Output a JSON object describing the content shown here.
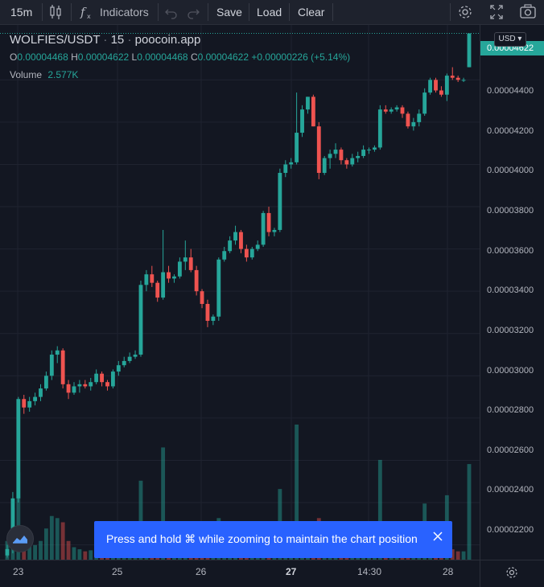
{
  "toolbar": {
    "interval": "15m",
    "indicators_label": "Indicators",
    "save_label": "Save",
    "load_label": "Load",
    "clear_label": "Clear"
  },
  "legend": {
    "symbol": "WOLFIES/USDT",
    "interval": "15",
    "source": "poocoin.app",
    "ohlc": [
      {
        "label": "O",
        "value": "0.00004468"
      },
      {
        "label": "H",
        "value": "0.00004622"
      },
      {
        "label": "L",
        "value": "0.00004468"
      },
      {
        "label": "C",
        "value": "0.00004622"
      }
    ],
    "change": "+0.00000226 (+5.14%)",
    "volume_label": "Volume",
    "volume_value": "2.577K"
  },
  "price_scale": {
    "currency": "USD",
    "current_price": "0.00004622",
    "labels": [
      "0.00004400",
      "0.00004200",
      "0.00004000",
      "0.00003800",
      "0.00003600",
      "0.00003400",
      "0.00003200",
      "0.00003000",
      "0.00002800",
      "0.00002600",
      "0.00002400",
      "0.00002200"
    ]
  },
  "time_scale": {
    "labels": [
      "23",
      "25",
      "26",
      "27",
      "14:30",
      "28"
    ]
  },
  "toast": {
    "message": "Press and hold ⌘ while zooming to maintain the chart position"
  },
  "colors": {
    "up": "#26a69a",
    "down": "#ef5350",
    "background": "#131722",
    "toast": "#2962ff"
  },
  "chart_data": {
    "type": "candlestick",
    "ylim": [
      2.13e-05,
      4.66e-05
    ],
    "x_labels": [
      "23",
      "25",
      "26",
      "27",
      "14:30",
      "28"
    ],
    "candles": [
      {
        "o": 2.15e-05,
        "h": 2.2e-05,
        "l": 2.14e-05,
        "c": 2.18e-05,
        "v": 90
      },
      {
        "o": 2.19e-05,
        "h": 2.45e-05,
        "l": 2.16e-05,
        "c": 2.42e-05,
        "v": 250
      },
      {
        "o": 2.42e-05,
        "h": 2.9e-05,
        "l": 2.4e-05,
        "c": 2.89e-05,
        "v": 420
      },
      {
        "o": 2.89e-05,
        "h": 2.91e-05,
        "l": 2.82e-05,
        "c": 2.85e-05,
        "v": 110
      },
      {
        "o": 2.85e-05,
        "h": 2.9e-05,
        "l": 2.83e-05,
        "c": 2.88e-05,
        "v": 80
      },
      {
        "o": 2.88e-05,
        "h": 2.92e-05,
        "l": 2.86e-05,
        "c": 2.9e-05,
        "v": 70
      },
      {
        "o": 2.9e-05,
        "h": 2.96e-05,
        "l": 2.88e-05,
        "c": 2.94e-05,
        "v": 90
      },
      {
        "o": 2.94e-05,
        "h": 3.02e-05,
        "l": 2.93e-05,
        "c": 3e-05,
        "v": 150
      },
      {
        "o": 3e-05,
        "h": 3.12e-05,
        "l": 2.98e-05,
        "c": 3.1e-05,
        "v": 210
      },
      {
        "o": 3.1e-05,
        "h": 3.14e-05,
        "l": 3.06e-05,
        "c": 3.12e-05,
        "v": 200
      },
      {
        "o": 3.12e-05,
        "h": 3.13e-05,
        "l": 2.94e-05,
        "c": 2.96e-05,
        "v": 180
      },
      {
        "o": 2.96e-05,
        "h": 2.98e-05,
        "l": 2.89e-05,
        "c": 2.92e-05,
        "v": 90
      },
      {
        "o": 2.92e-05,
        "h": 2.97e-05,
        "l": 2.91e-05,
        "c": 2.95e-05,
        "v": 60
      },
      {
        "o": 2.95e-05,
        "h": 2.98e-05,
        "l": 2.92e-05,
        "c": 2.96e-05,
        "v": 50
      },
      {
        "o": 2.96e-05,
        "h": 2.98e-05,
        "l": 2.94e-05,
        "c": 2.95e-05,
        "v": 40
      },
      {
        "o": 2.95e-05,
        "h": 2.99e-05,
        "l": 2.93e-05,
        "c": 2.97e-05,
        "v": 45
      },
      {
        "o": 2.97e-05,
        "h": 3.03e-05,
        "l": 2.96e-05,
        "c": 3.01e-05,
        "v": 60
      },
      {
        "o": 3.01e-05,
        "h": 3.02e-05,
        "l": 2.95e-05,
        "c": 2.97e-05,
        "v": 40
      },
      {
        "o": 2.97e-05,
        "h": 2.98e-05,
        "l": 2.93e-05,
        "c": 2.95e-05,
        "v": 50
      },
      {
        "o": 2.95e-05,
        "h": 3.03e-05,
        "l": 2.94e-05,
        "c": 3.02e-05,
        "v": 40
      },
      {
        "o": 3.02e-05,
        "h": 3.07e-05,
        "l": 3e-05,
        "c": 3.05e-05,
        "v": 40
      },
      {
        "o": 3.05e-05,
        "h": 3.09e-05,
        "l": 3.04e-05,
        "c": 3.07e-05,
        "v": 40
      },
      {
        "o": 3.07e-05,
        "h": 3.11e-05,
        "l": 3.06e-05,
        "c": 3.09e-05,
        "v": 40
      },
      {
        "o": 3.09e-05,
        "h": 3.12e-05,
        "l": 3.08e-05,
        "c": 3.1e-05,
        "v": 40
      },
      {
        "o": 3.1e-05,
        "h": 3.45e-05,
        "l": 3.09e-05,
        "c": 3.43e-05,
        "v": 380
      },
      {
        "o": 3.43e-05,
        "h": 3.5e-05,
        "l": 3.4e-05,
        "c": 3.48e-05,
        "v": 50
      },
      {
        "o": 3.48e-05,
        "h": 3.52e-05,
        "l": 3.42e-05,
        "c": 3.44e-05,
        "v": 40
      },
      {
        "o": 3.44e-05,
        "h": 3.45e-05,
        "l": 3.35e-05,
        "c": 3.37e-05,
        "v": 60
      },
      {
        "o": 3.37e-05,
        "h": 3.69e-05,
        "l": 3.36e-05,
        "c": 3.49e-05,
        "v": 540
      },
      {
        "o": 3.49e-05,
        "h": 3.52e-05,
        "l": 3.44e-05,
        "c": 3.46e-05,
        "v": 50
      },
      {
        "o": 3.46e-05,
        "h": 3.48e-05,
        "l": 3.44e-05,
        "c": 3.47e-05,
        "v": 40
      },
      {
        "o": 3.47e-05,
        "h": 3.56e-05,
        "l": 3.46e-05,
        "c": 3.54e-05,
        "v": 60
      },
      {
        "o": 3.54e-05,
        "h": 3.64e-05,
        "l": 3.5e-05,
        "c": 3.56e-05,
        "v": 50
      },
      {
        "o": 3.56e-05,
        "h": 3.6e-05,
        "l": 3.49e-05,
        "c": 3.5e-05,
        "v": 40
      },
      {
        "o": 3.5e-05,
        "h": 3.52e-05,
        "l": 3.38e-05,
        "c": 3.4e-05,
        "v": 50
      },
      {
        "o": 3.4e-05,
        "h": 3.41e-05,
        "l": 3.32e-05,
        "c": 3.34e-05,
        "v": 40
      },
      {
        "o": 3.34e-05,
        "h": 3.36e-05,
        "l": 3.23e-05,
        "c": 3.26e-05,
        "v": 40
      },
      {
        "o": 3.26e-05,
        "h": 3.29e-05,
        "l": 3.24e-05,
        "c": 3.28e-05,
        "v": 60
      },
      {
        "o": 3.28e-05,
        "h": 3.56e-05,
        "l": 3.26e-05,
        "c": 3.55e-05,
        "v": 200
      },
      {
        "o": 3.55e-05,
        "h": 3.61e-05,
        "l": 3.54e-05,
        "c": 3.59e-05,
        "v": 80
      },
      {
        "o": 3.59e-05,
        "h": 3.66e-05,
        "l": 3.58e-05,
        "c": 3.64e-05,
        "v": 60
      },
      {
        "o": 3.64e-05,
        "h": 3.71e-05,
        "l": 3.62e-05,
        "c": 3.68e-05,
        "v": 50
      },
      {
        "o": 3.68e-05,
        "h": 3.69e-05,
        "l": 3.58e-05,
        "c": 3.6e-05,
        "v": 40
      },
      {
        "o": 3.6e-05,
        "h": 3.62e-05,
        "l": 3.54e-05,
        "c": 3.56e-05,
        "v": 40
      },
      {
        "o": 3.56e-05,
        "h": 3.61e-05,
        "l": 3.55e-05,
        "c": 3.6e-05,
        "v": 40
      },
      {
        "o": 3.6e-05,
        "h": 3.64e-05,
        "l": 3.59e-05,
        "c": 3.62e-05,
        "v": 40
      },
      {
        "o": 3.62e-05,
        "h": 3.78e-05,
        "l": 3.61e-05,
        "c": 3.77e-05,
        "v": 120
      },
      {
        "o": 3.77e-05,
        "h": 3.8e-05,
        "l": 3.66e-05,
        "c": 3.68e-05,
        "v": 60
      },
      {
        "o": 3.68e-05,
        "h": 3.7e-05,
        "l": 3.66e-05,
        "c": 3.69e-05,
        "v": 50
      },
      {
        "o": 3.69e-05,
        "h": 3.98e-05,
        "l": 3.68e-05,
        "c": 3.96e-05,
        "v": 340
      },
      {
        "o": 3.96e-05,
        "h": 4.02e-05,
        "l": 3.94e-05,
        "c": 4e-05,
        "v": 130
      },
      {
        "o": 4e-05,
        "h": 4.03e-05,
        "l": 3.98e-05,
        "c": 4.01e-05,
        "v": 90
      },
      {
        "o": 4.01e-05,
        "h": 4.34e-05,
        "l": 4e-05,
        "c": 4.15e-05,
        "v": 650
      },
      {
        "o": 4.15e-05,
        "h": 4.28e-05,
        "l": 4.13e-05,
        "c": 4.26e-05,
        "v": 80
      },
      {
        "o": 4.26e-05,
        "h": 4.32e-05,
        "l": 4.24e-05,
        "c": 4.32e-05,
        "v": 90
      },
      {
        "o": 4.32e-05,
        "h": 4.33e-05,
        "l": 4.18e-05,
        "c": 4.18e-05,
        "v": 110
      },
      {
        "o": 4.18e-05,
        "h": 4.2e-05,
        "l": 3.93e-05,
        "c": 3.96e-05,
        "v": 200
      },
      {
        "o": 3.96e-05,
        "h": 4.04e-05,
        "l": 3.95e-05,
        "c": 4.03e-05,
        "v": 110
      },
      {
        "o": 4.03e-05,
        "h": 4.07e-05,
        "l": 3.98e-05,
        "c": 4.05e-05,
        "v": 60
      },
      {
        "o": 4.05e-05,
        "h": 4.1e-05,
        "l": 4.03e-05,
        "c": 4.07e-05,
        "v": 40
      },
      {
        "o": 4.07e-05,
        "h": 4.08e-05,
        "l": 4e-05,
        "c": 4.02e-05,
        "v": 60
      },
      {
        "o": 4.02e-05,
        "h": 4.03e-05,
        "l": 3.98e-05,
        "c": 4e-05,
        "v": 40
      },
      {
        "o": 4e-05,
        "h": 4.05e-05,
        "l": 3.99e-05,
        "c": 4.03e-05,
        "v": 40
      },
      {
        "o": 4.03e-05,
        "h": 4.06e-05,
        "l": 4.01e-05,
        "c": 4.04e-05,
        "v": 40
      },
      {
        "o": 4.04e-05,
        "h": 4.09e-05,
        "l": 4.03e-05,
        "c": 4.07e-05,
        "v": 40
      },
      {
        "o": 4.07e-05,
        "h": 4.08e-05,
        "l": 4.05e-05,
        "c": 4.07e-05,
        "v": 40
      },
      {
        "o": 4.07e-05,
        "h": 4.09e-05,
        "l": 4.06e-05,
        "c": 4.08e-05,
        "v": 40
      },
      {
        "o": 4.08e-05,
        "h": 4.28e-05,
        "l": 4.07e-05,
        "c": 4.26e-05,
        "v": 480
      },
      {
        "o": 4.26e-05,
        "h": 4.28e-05,
        "l": 4.24e-05,
        "c": 4.25e-05,
        "v": 60
      },
      {
        "o": 4.25e-05,
        "h": 4.27e-05,
        "l": 4.24e-05,
        "c": 4.26e-05,
        "v": 40
      },
      {
        "o": 4.26e-05,
        "h": 4.28e-05,
        "l": 4.25e-05,
        "c": 4.27e-05,
        "v": 40
      },
      {
        "o": 4.27e-05,
        "h": 4.28e-05,
        "l": 4.22e-05,
        "c": 4.24e-05,
        "v": 40
      },
      {
        "o": 4.24e-05,
        "h": 4.25e-05,
        "l": 4.17e-05,
        "c": 4.18e-05,
        "v": 40
      },
      {
        "o": 4.18e-05,
        "h": 4.22e-05,
        "l": 4.16e-05,
        "c": 4.2e-05,
        "v": 40
      },
      {
        "o": 4.2e-05,
        "h": 4.26e-05,
        "l": 4.18e-05,
        "c": 4.24e-05,
        "v": 40
      },
      {
        "o": 4.24e-05,
        "h": 4.36e-05,
        "l": 4.23e-05,
        "c": 4.34e-05,
        "v": 270
      },
      {
        "o": 4.34e-05,
        "h": 4.41e-05,
        "l": 4.33e-05,
        "c": 4.4e-05,
        "v": 150
      },
      {
        "o": 4.4e-05,
        "h": 4.41e-05,
        "l": 4.34e-05,
        "c": 4.35e-05,
        "v": 130
      },
      {
        "o": 4.35e-05,
        "h": 4.37e-05,
        "l": 4.32e-05,
        "c": 4.33e-05,
        "v": 60
      },
      {
        "o": 4.33e-05,
        "h": 4.43e-05,
        "l": 4.3e-05,
        "c": 4.42e-05,
        "v": 310
      },
      {
        "o": 4.42e-05,
        "h": 4.46e-05,
        "l": 4.4e-05,
        "c": 4.41e-05,
        "v": 50
      },
      {
        "o": 4.41e-05,
        "h": 4.42e-05,
        "l": 4.39e-05,
        "c": 4.4e-05,
        "v": 40
      },
      {
        "o": 4.4e-05,
        "h": 4.41e-05,
        "l": 4.39e-05,
        "c": 4.4e-05,
        "v": 40
      },
      {
        "o": 4.46e-05,
        "h": 4.62e-05,
        "l": 4.46e-05,
        "c": 4.62e-05,
        "v": 460
      }
    ]
  }
}
